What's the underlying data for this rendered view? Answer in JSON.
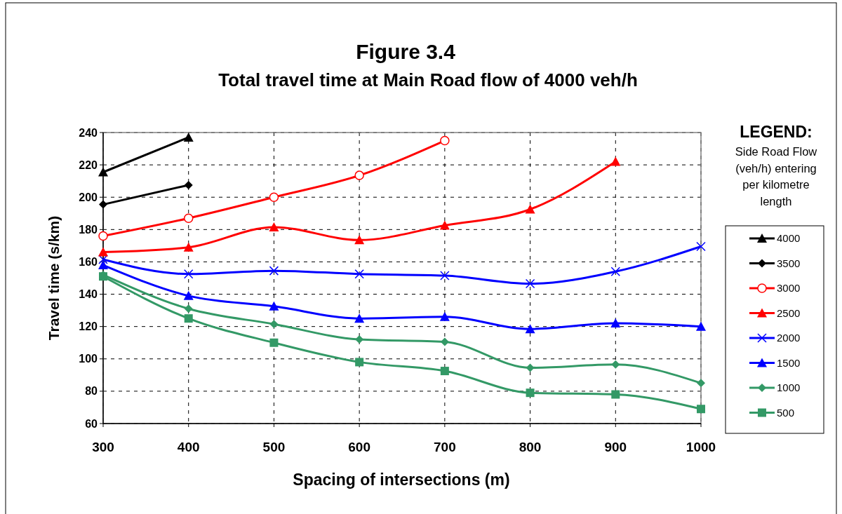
{
  "chart_data": {
    "type": "line",
    "title": "Figure 3.4",
    "subtitle": "Total travel time at Main Road flow of 4000 veh/h",
    "xlabel": "Spacing of intersections (m)",
    "ylabel": "Travel time (s/km)",
    "legend_title": "LEGEND:",
    "annotations": [
      "Side Road Flow (veh/h) entering per kilometre length"
    ],
    "x": [
      300,
      400,
      500,
      600,
      700,
      800,
      900,
      1000
    ],
    "series": [
      {
        "name": "4000",
        "color": "#000000",
        "marker": "triangle",
        "values": [
          215.5,
          237,
          null,
          null,
          null,
          null,
          null,
          null
        ]
      },
      {
        "name": "3500",
        "color": "#000000",
        "marker": "diamond",
        "values": [
          195.5,
          207.5,
          null,
          null,
          null,
          null,
          null,
          null
        ]
      },
      {
        "name": "3000",
        "color": "#ff0000",
        "marker": "circle",
        "values": [
          176,
          187,
          200,
          213.5,
          235,
          null,
          null,
          null
        ]
      },
      {
        "name": "2500",
        "color": "#ff0000",
        "marker": "triangle",
        "values": [
          166,
          169,
          181.5,
          173.5,
          182.5,
          192.5,
          222,
          null
        ]
      },
      {
        "name": "2000",
        "color": "#0000ff",
        "marker": "cross",
        "values": [
          161.5,
          152.5,
          154.5,
          152.5,
          151.5,
          146.5,
          154,
          169.5
        ]
      },
      {
        "name": "1500",
        "color": "#0000ff",
        "marker": "triangle",
        "values": [
          158,
          139,
          132.5,
          125,
          126,
          118.5,
          122,
          120
        ]
      },
      {
        "name": "1000",
        "color": "#339966",
        "marker": "diamond",
        "values": [
          152,
          131,
          121.5,
          112,
          110.5,
          94.5,
          96.5,
          85
        ]
      },
      {
        "name": "500",
        "color": "#339966",
        "marker": "square",
        "values": [
          151,
          125,
          110,
          98,
          92.5,
          79,
          78,
          69
        ]
      }
    ],
    "xlim": [
      300,
      1000
    ],
    "xticks": [
      300,
      400,
      500,
      600,
      700,
      800,
      900,
      1000
    ],
    "ylim": [
      60,
      240
    ],
    "yticks": [
      60,
      80,
      100,
      120,
      140,
      160,
      180,
      200,
      220,
      240
    ],
    "grid": true,
    "legend": "right",
    "line_style": "solid"
  }
}
